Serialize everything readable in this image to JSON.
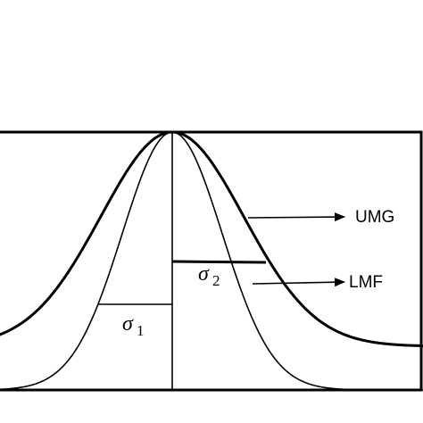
{
  "labels": {
    "upper": "UMG",
    "lower": "LMF"
  },
  "sigmas": [
    {
      "symbol": "σ",
      "subscript": "1"
    },
    {
      "symbol": "σ",
      "subscript": "2"
    }
  ]
}
